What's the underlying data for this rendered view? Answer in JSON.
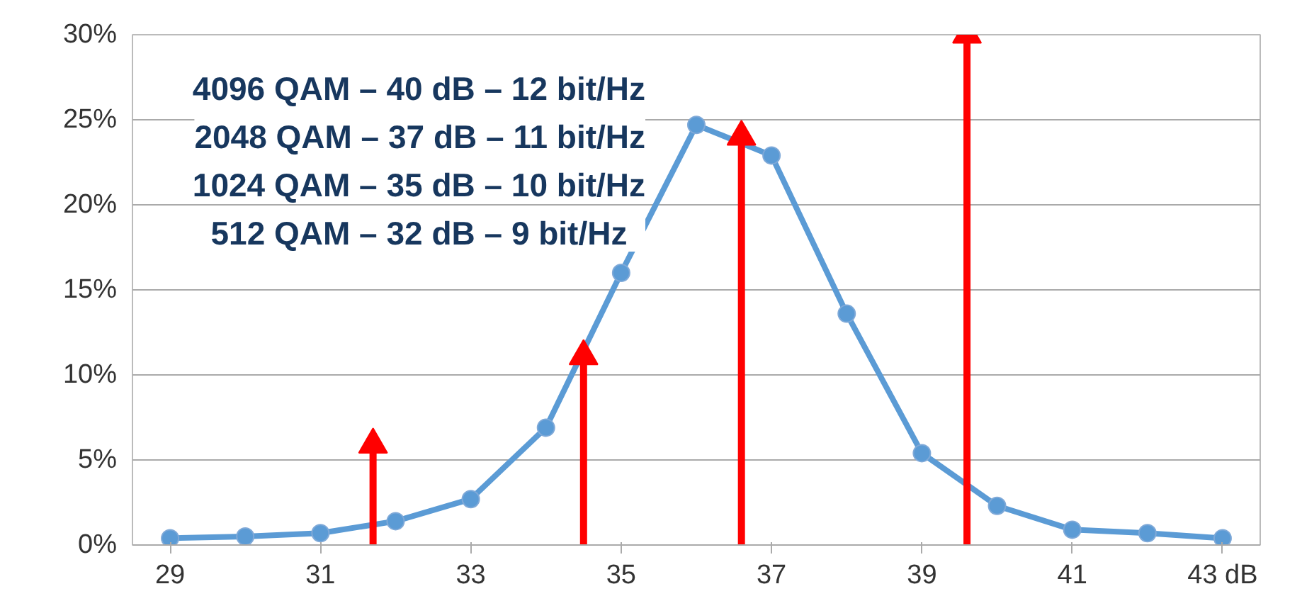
{
  "chart_data": {
    "type": "line",
    "x": [
      29,
      30,
      31,
      32,
      33,
      34,
      35,
      36,
      37,
      38,
      39,
      40,
      41,
      42,
      43
    ],
    "series": [
      {
        "color": "#5b9bd5",
        "values": [
          0.4,
          0.5,
          0.7,
          1.4,
          2.7,
          6.9,
          16.0,
          24.7,
          22.9,
          13.6,
          5.4,
          2.3,
          0.9,
          0.7,
          0.4
        ]
      },
      {
        "type": "lollipop",
        "color": "#ff0000",
        "marker": "triangle",
        "x": [
          31.7,
          34.5,
          36.6,
          39.6
        ],
        "values": [
          5.9,
          11.1,
          24.0,
          30.0
        ]
      }
    ],
    "xlim": [
      28.5,
      43.5
    ],
    "xticks": [
      29,
      31,
      33,
      35,
      37,
      39,
      41,
      {
        "value": 43,
        "label": "43 dB"
      }
    ],
    "ylim": [
      0,
      30
    ],
    "yticks": [
      {
        "value": 0,
        "label": "0%"
      },
      {
        "value": 5,
        "label": "5%"
      },
      {
        "value": 10,
        "label": "10%"
      },
      {
        "value": 15,
        "label": "15%"
      },
      {
        "value": 20,
        "label": "20%"
      },
      {
        "value": 25,
        "label": "25%"
      },
      {
        "value": 30,
        "label": "30%"
      }
    ],
    "grid": "y",
    "marker": "circle",
    "line_style": "solid",
    "annotations": [
      "4096 QAM – 40 dB – 12 bit/Hz",
      "2048 QAM – 37 dB – 11 bit/Hz",
      "1024 QAM – 35 dB – 10 bit/Hz",
      "512 QAM – 32 dB –   9 bit/Hz"
    ]
  }
}
